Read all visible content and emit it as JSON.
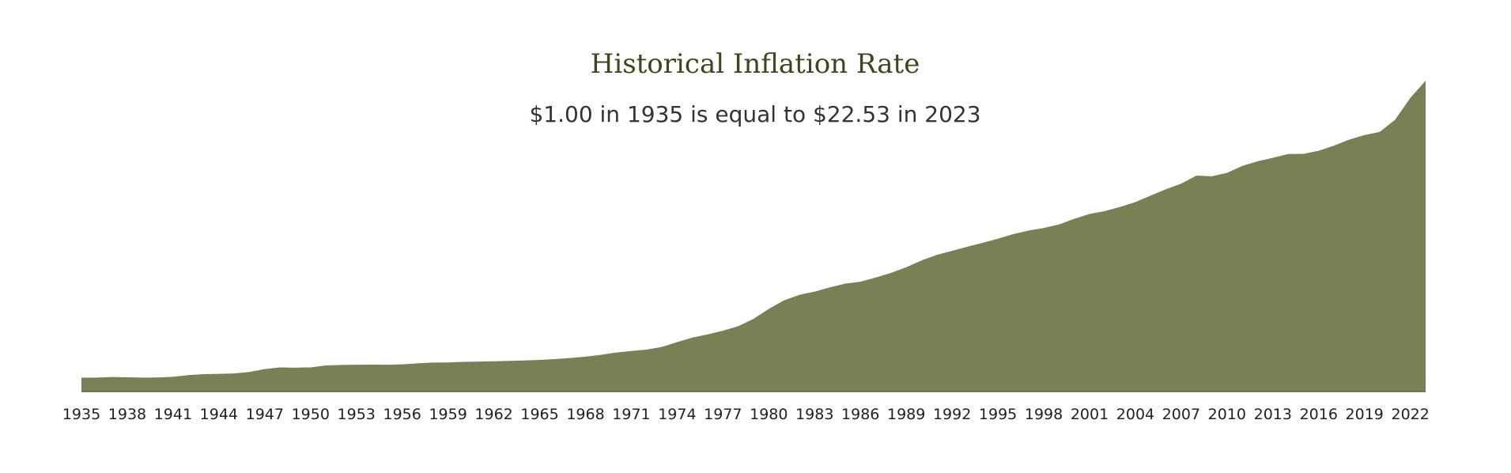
{
  "chart_data": {
    "type": "area",
    "title": "Historical Inflation Rate",
    "subtitle": "$1.00 in 1935 is equal to $22.53 in 2023",
    "xlabel": "",
    "ylabel": "",
    "x": [
      1935,
      1936,
      1937,
      1938,
      1939,
      1940,
      1941,
      1942,
      1943,
      1944,
      1945,
      1946,
      1947,
      1948,
      1949,
      1950,
      1951,
      1952,
      1953,
      1954,
      1955,
      1956,
      1957,
      1958,
      1959,
      1960,
      1961,
      1962,
      1963,
      1964,
      1965,
      1966,
      1967,
      1968,
      1969,
      1970,
      1971,
      1972,
      1973,
      1974,
      1975,
      1976,
      1977,
      1978,
      1979,
      1980,
      1981,
      1982,
      1983,
      1984,
      1985,
      1986,
      1987,
      1988,
      1989,
      1990,
      1991,
      1992,
      1993,
      1994,
      1995,
      1996,
      1997,
      1998,
      1999,
      2000,
      2001,
      2002,
      2003,
      2004,
      2005,
      2006,
      2007,
      2008,
      2009,
      2010,
      2011,
      2012,
      2013,
      2014,
      2015,
      2016,
      2017,
      2018,
      2019,
      2020,
      2021,
      2022,
      2023
    ],
    "values": [
      1.0,
      1.01,
      1.05,
      1.03,
      1.01,
      1.02,
      1.07,
      1.19,
      1.26,
      1.28,
      1.31,
      1.42,
      1.63,
      1.75,
      1.73,
      1.75,
      1.89,
      1.93,
      1.94,
      1.95,
      1.94,
      1.97,
      2.04,
      2.1,
      2.11,
      2.15,
      2.17,
      2.19,
      2.22,
      2.25,
      2.29,
      2.35,
      2.43,
      2.53,
      2.66,
      2.82,
      2.94,
      3.04,
      3.23,
      3.58,
      3.91,
      4.14,
      4.41,
      4.74,
      5.27,
      5.99,
      6.61,
      7.01,
      7.24,
      7.55,
      7.82,
      7.96,
      8.26,
      8.6,
      9.01,
      9.5,
      9.9,
      10.2,
      10.5,
      10.78,
      11.08,
      11.41,
      11.67,
      11.85,
      12.11,
      12.52,
      12.87,
      13.08,
      13.38,
      13.73,
      14.2,
      14.66,
      15.07,
      15.65,
      15.6,
      15.85,
      16.35,
      16.69,
      16.94,
      17.21,
      17.23,
      17.45,
      17.82,
      18.26,
      18.59,
      18.82,
      19.7,
      21.28,
      22.53
    ],
    "tick_labels": [
      "1935",
      "1938",
      "1941",
      "1944",
      "1947",
      "1950",
      "1953",
      "1956",
      "1959",
      "1962",
      "1965",
      "1968",
      "1971",
      "1974",
      "1977",
      "1980",
      "1983",
      "1986",
      "1989",
      "1992",
      "1995",
      "1998",
      "2001",
      "2004",
      "2007",
      "2010",
      "2013",
      "2016",
      "2019",
      "2022"
    ],
    "xlim": [
      1935,
      2023
    ],
    "ylim": [
      0,
      22.53
    ],
    "grid": false,
    "legend": "none",
    "colors": {
      "fill": "#7a8055",
      "baseline": "#5c6140",
      "title": "#3d461f",
      "subtitle": "#333333",
      "ticks": "#222222"
    }
  }
}
